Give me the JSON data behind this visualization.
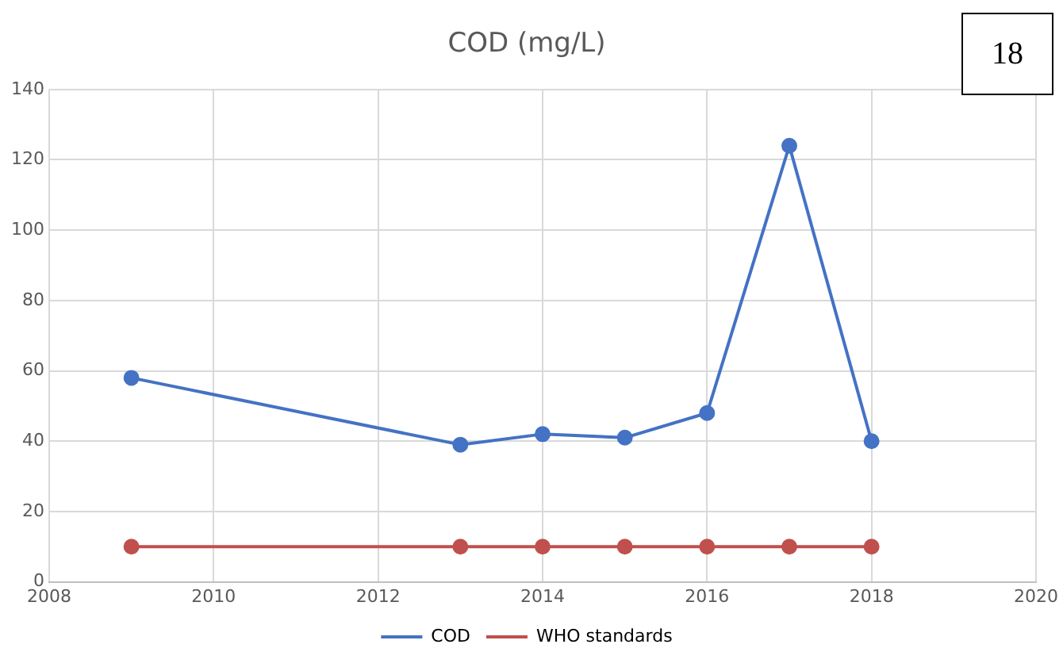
{
  "chart_data": {
    "type": "line",
    "title": "COD (mg/L)",
    "annotations": [
      "18"
    ],
    "x": [
      2009,
      2013,
      2014,
      2015,
      2016,
      2017,
      2018
    ],
    "series": [
      {
        "name": "COD",
        "color": "#4472c4",
        "values": [
          58,
          39,
          42,
          41,
          48,
          124,
          40
        ]
      },
      {
        "name": "WHO standards",
        "color": "#c0504d",
        "values": [
          10,
          10,
          10,
          10,
          10,
          10,
          10
        ]
      }
    ],
    "xlim": [
      2008,
      2020
    ],
    "xticks": [
      2008,
      2010,
      2012,
      2014,
      2016,
      2018,
      2020
    ],
    "ylim": [
      0,
      140
    ],
    "yticks": [
      0,
      20,
      40,
      60,
      80,
      100,
      120,
      140
    ],
    "grid": true,
    "legend": "bottom",
    "marker": "circle",
    "line_style": "solid"
  }
}
